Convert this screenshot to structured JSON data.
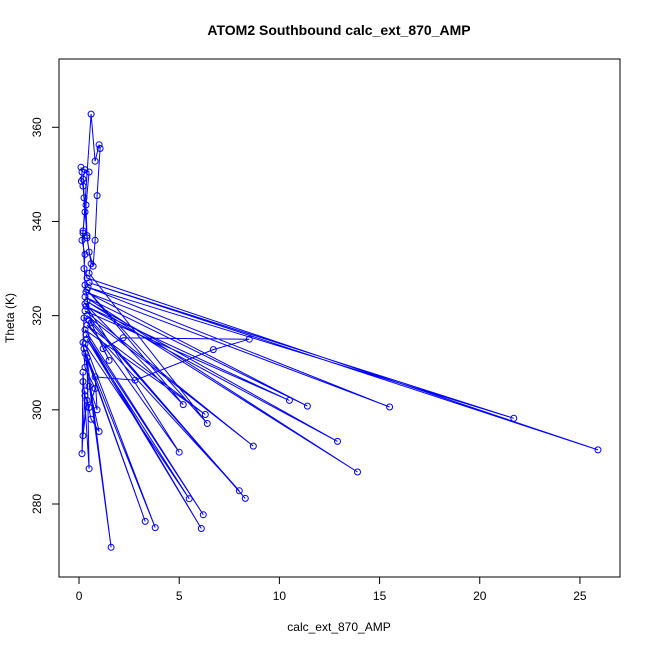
{
  "chart_data": {
    "type": "line",
    "title": "ATOM2 Southbound calc_ext_870_AMP",
    "xlabel": "calc_ext_870_AMP",
    "ylabel": "Theta (K)",
    "xlim": [
      -1.0,
      27.0
    ],
    "ylim": [
      264.5,
      374.5
    ],
    "x_ticks": [
      0,
      5,
      10,
      15,
      20,
      25
    ],
    "y_ticks": [
      280,
      300,
      320,
      340,
      360
    ],
    "grid": false,
    "color": "#0000ff",
    "series": [
      {
        "marker": "open-circle",
        "points": [
          [
            0.1,
            351.5
          ],
          [
            0.15,
            350.5
          ],
          [
            0.12,
            348.5
          ],
          [
            0.2,
            347.5
          ],
          [
            0.25,
            345.0
          ],
          [
            0.3,
            342.0
          ],
          [
            0.2,
            338.0
          ],
          [
            0.15,
            336.0
          ],
          [
            0.3,
            333.0
          ],
          [
            0.25,
            330.0
          ],
          [
            0.4,
            328.0
          ],
          [
            25.9,
            291.5
          ],
          [
            0.5,
            327.0
          ],
          [
            21.7,
            298.2
          ],
          [
            0.45,
            326.0
          ],
          [
            15.5,
            300.6
          ],
          [
            0.35,
            325.0
          ],
          [
            11.4,
            300.8
          ],
          [
            0.3,
            324.0
          ],
          [
            13.9,
            286.8
          ],
          [
            0.4,
            323.0
          ],
          [
            12.9,
            293.3
          ],
          [
            0.35,
            322.0
          ],
          [
            10.5,
            302.0
          ],
          [
            0.3,
            321.0
          ],
          [
            8.7,
            292.3
          ],
          [
            0.4,
            320.0
          ],
          [
            8.3,
            281.2
          ],
          [
            0.5,
            319.0
          ],
          [
            8.0,
            282.8
          ],
          [
            0.4,
            318.0
          ],
          [
            6.3,
            299.0
          ],
          [
            0.3,
            317.0
          ],
          [
            6.2,
            277.7
          ],
          [
            0.35,
            316.0
          ],
          [
            6.1,
            274.8
          ],
          [
            0.4,
            315.0
          ],
          [
            5.5,
            281.1
          ],
          [
            0.3,
            314.0
          ],
          [
            3.8,
            275.0
          ],
          [
            0.25,
            313.0
          ],
          [
            3.3,
            276.3
          ],
          [
            0.3,
            312.0
          ],
          [
            1.6,
            270.8
          ],
          [
            0.4,
            311.0
          ],
          [
            0.5,
            287.5
          ],
          [
            0.2,
            308.0
          ],
          [
            0.15,
            290.7
          ],
          [
            0.3,
            304.0
          ],
          [
            0.2,
            294.5
          ],
          [
            0.4,
            302.0
          ],
          [
            0.6,
            298.0
          ],
          [
            1.0,
            295.4
          ],
          [
            0.5,
            305.0
          ],
          [
            0.9,
            300.0
          ],
          [
            0.8,
            307.0
          ],
          [
            2.8,
            306.3
          ],
          [
            6.7,
            312.8
          ],
          [
            8.5,
            315.0
          ],
          [
            2.2,
            315.3
          ],
          [
            1.2,
            313.0
          ],
          [
            1.5,
            310.5
          ],
          [
            0.6,
            318.5
          ],
          [
            0.3,
            326.5
          ],
          [
            0.2,
            337.5
          ],
          [
            0.6,
            362.8
          ],
          [
            0.8,
            352.8
          ],
          [
            1.0,
            356.3
          ],
          [
            1.05,
            355.5
          ],
          [
            0.9,
            345.5
          ],
          [
            0.8,
            336.0
          ],
          [
            0.7,
            330.5
          ],
          [
            0.5,
            333.5
          ],
          [
            0.4,
            337.0
          ],
          [
            0.35,
            343.5
          ],
          [
            0.5,
            350.5
          ],
          [
            0.3,
            351.0
          ],
          [
            0.2,
            349.0
          ],
          [
            0.4,
            336.5
          ],
          [
            0.6,
            331.0
          ],
          [
            0.5,
            329.0
          ],
          [
            6.4,
            297.1
          ],
          [
            0.4,
            325.5
          ],
          [
            5.2,
            301.1
          ],
          [
            0.3,
            322.5
          ],
          [
            5.0,
            291.0
          ],
          [
            0.25,
            319.5
          ],
          [
            0.2,
            314.3
          ],
          [
            0.3,
            309.0
          ],
          [
            0.8,
            304.5
          ],
          [
            0.5,
            300.5
          ],
          [
            0.3,
            303.0
          ],
          [
            0.2,
            306.0
          ]
        ]
      }
    ]
  }
}
